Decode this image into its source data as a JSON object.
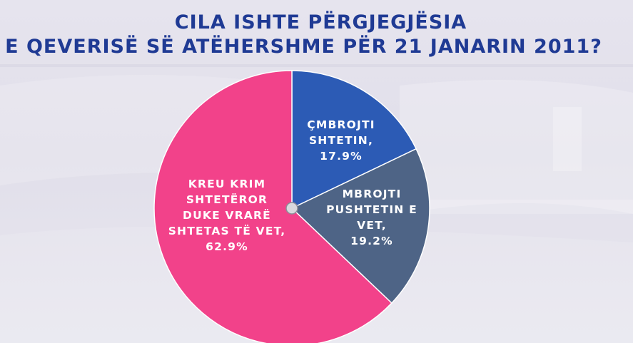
{
  "chart_data": {
    "type": "pie",
    "title_lines": [
      "CILA ISHTE PËRGJEGJËSIA",
      "E QEVERISË SË ATËHERSHME PËR 21 JANARIN 2011?"
    ],
    "slices": [
      {
        "label_lines": [
          "ÇMBROJTI",
          "SHTETIN,"
        ],
        "value": 17.9,
        "value_label": "17.9%",
        "color": "#2c5bb5"
      },
      {
        "label_lines": [
          "MBROJTI",
          "PUSHTETIN E",
          "VET,"
        ],
        "value": 19.2,
        "value_label": "19.2%",
        "color": "#4e6486"
      },
      {
        "label_lines": [
          "KREU KRIM",
          "SHTETËROR",
          "DUKE VRARË",
          "SHTETAS TË VET,"
        ],
        "value": 62.9,
        "value_label": "62.9%",
        "color": "#f2428a"
      }
    ]
  }
}
